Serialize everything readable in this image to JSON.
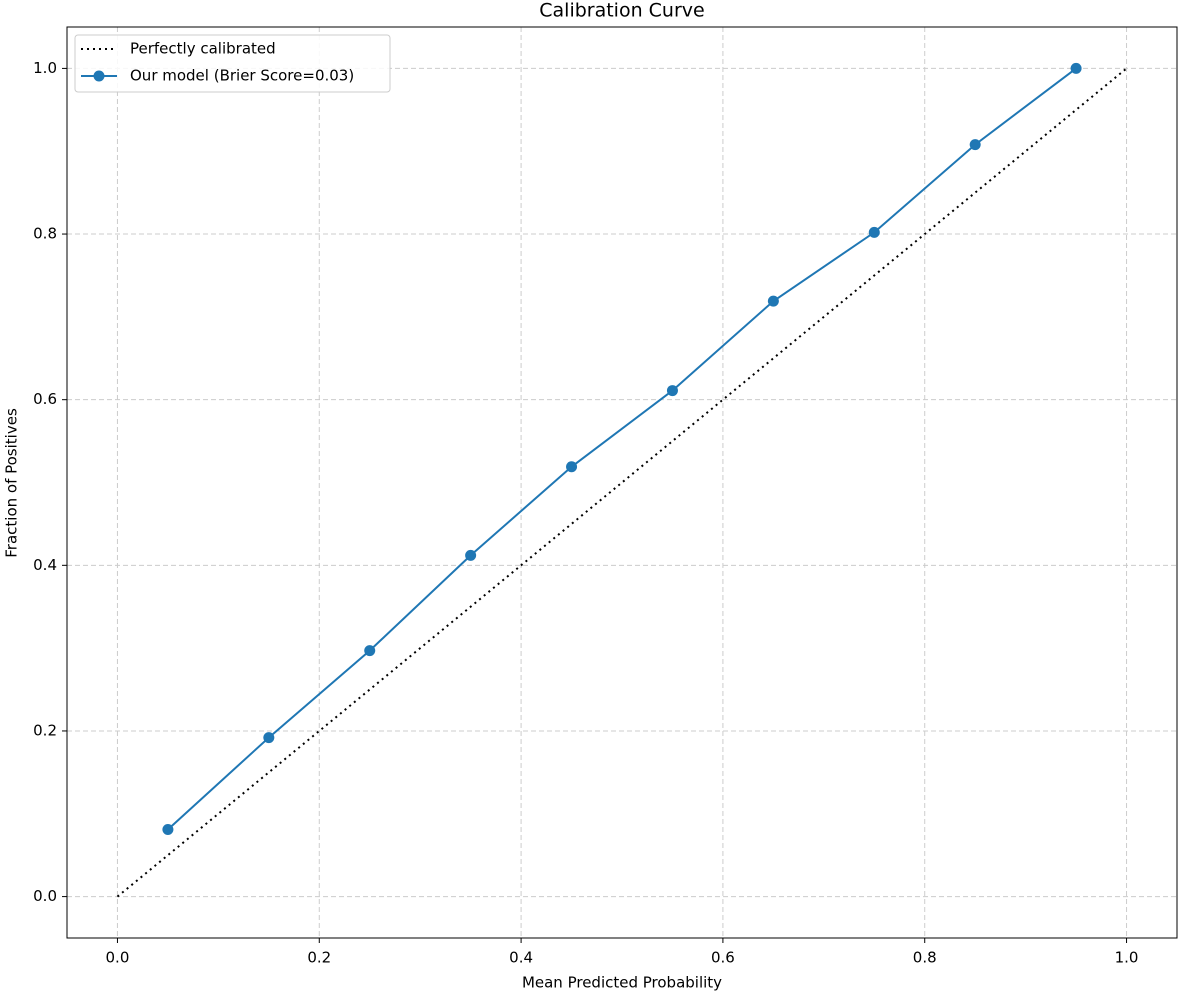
{
  "chart_data": {
    "type": "line",
    "title": "Calibration Curve",
    "x_label": "Mean Predicted Probability",
    "y_label": "Fraction of Positives",
    "series": [
      {
        "name": "Perfectly calibrated",
        "color": "#000000",
        "linestyle": "dotted",
        "marker": "none",
        "x": [
          0,
          1
        ],
        "values": [
          0,
          1
        ]
      },
      {
        "name": "Our model (Brier Score=0.03)",
        "color": "#1f77b4",
        "linestyle": "solid",
        "marker": "circle",
        "x": [
          0.05,
          0.15,
          0.25,
          0.35,
          0.45,
          0.55,
          0.65,
          0.75,
          0.85,
          0.95
        ],
        "values": [
          0.081,
          0.192,
          0.297,
          0.412,
          0.519,
          0.611,
          0.719,
          0.802,
          0.908,
          1.0
        ]
      }
    ],
    "xlim": [
      -0.05,
      1.05
    ],
    "ylim": [
      -0.05,
      1.05
    ],
    "xticks": [
      {
        "value": 0,
        "label": "0.0"
      },
      0.2,
      0.4,
      0.6,
      0.8,
      {
        "value": 1,
        "label": "1.0"
      }
    ],
    "yticks": [
      {
        "value": 0,
        "label": "0.0"
      },
      0.2,
      0.4,
      0.6,
      0.8,
      {
        "value": 1,
        "label": "1.0"
      }
    ],
    "grid": true,
    "legend": "upper left"
  }
}
